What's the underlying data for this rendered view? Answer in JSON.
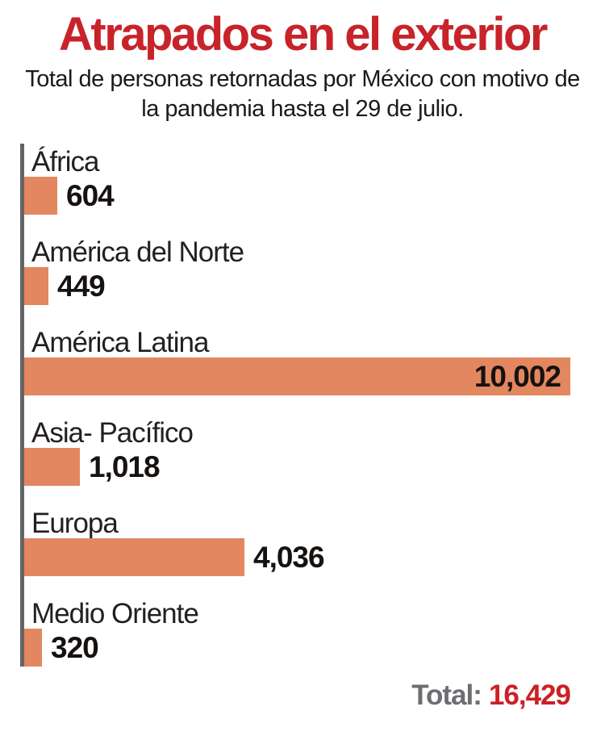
{
  "chart_data": {
    "type": "bar",
    "orientation": "horizontal",
    "title": "Atrapados en el exterior",
    "subtitle": "Total de personas retornadas por México con motivo de la pandemia hasta el 29 de julio.",
    "categories": [
      "África",
      "América del Norte",
      "América Latina",
      "Asia- Pacífico",
      "Europa",
      "Medio Oriente"
    ],
    "values": [
      604,
      449,
      10002,
      1018,
      4036,
      320
    ],
    "value_labels": [
      "604",
      "449",
      "10,002",
      "1,018",
      "4,036",
      "320"
    ],
    "xlim": [
      0,
      10002
    ],
    "total_label": "Total:",
    "total_value": "16,429",
    "grid": false,
    "legend": false,
    "colors": {
      "bar": "#e28760",
      "title_red": "#c8232a",
      "total_red": "#cb2026",
      "total_gray": "#6d6e71",
      "axis_gray": "#636466",
      "text_black": "#231f20"
    }
  }
}
